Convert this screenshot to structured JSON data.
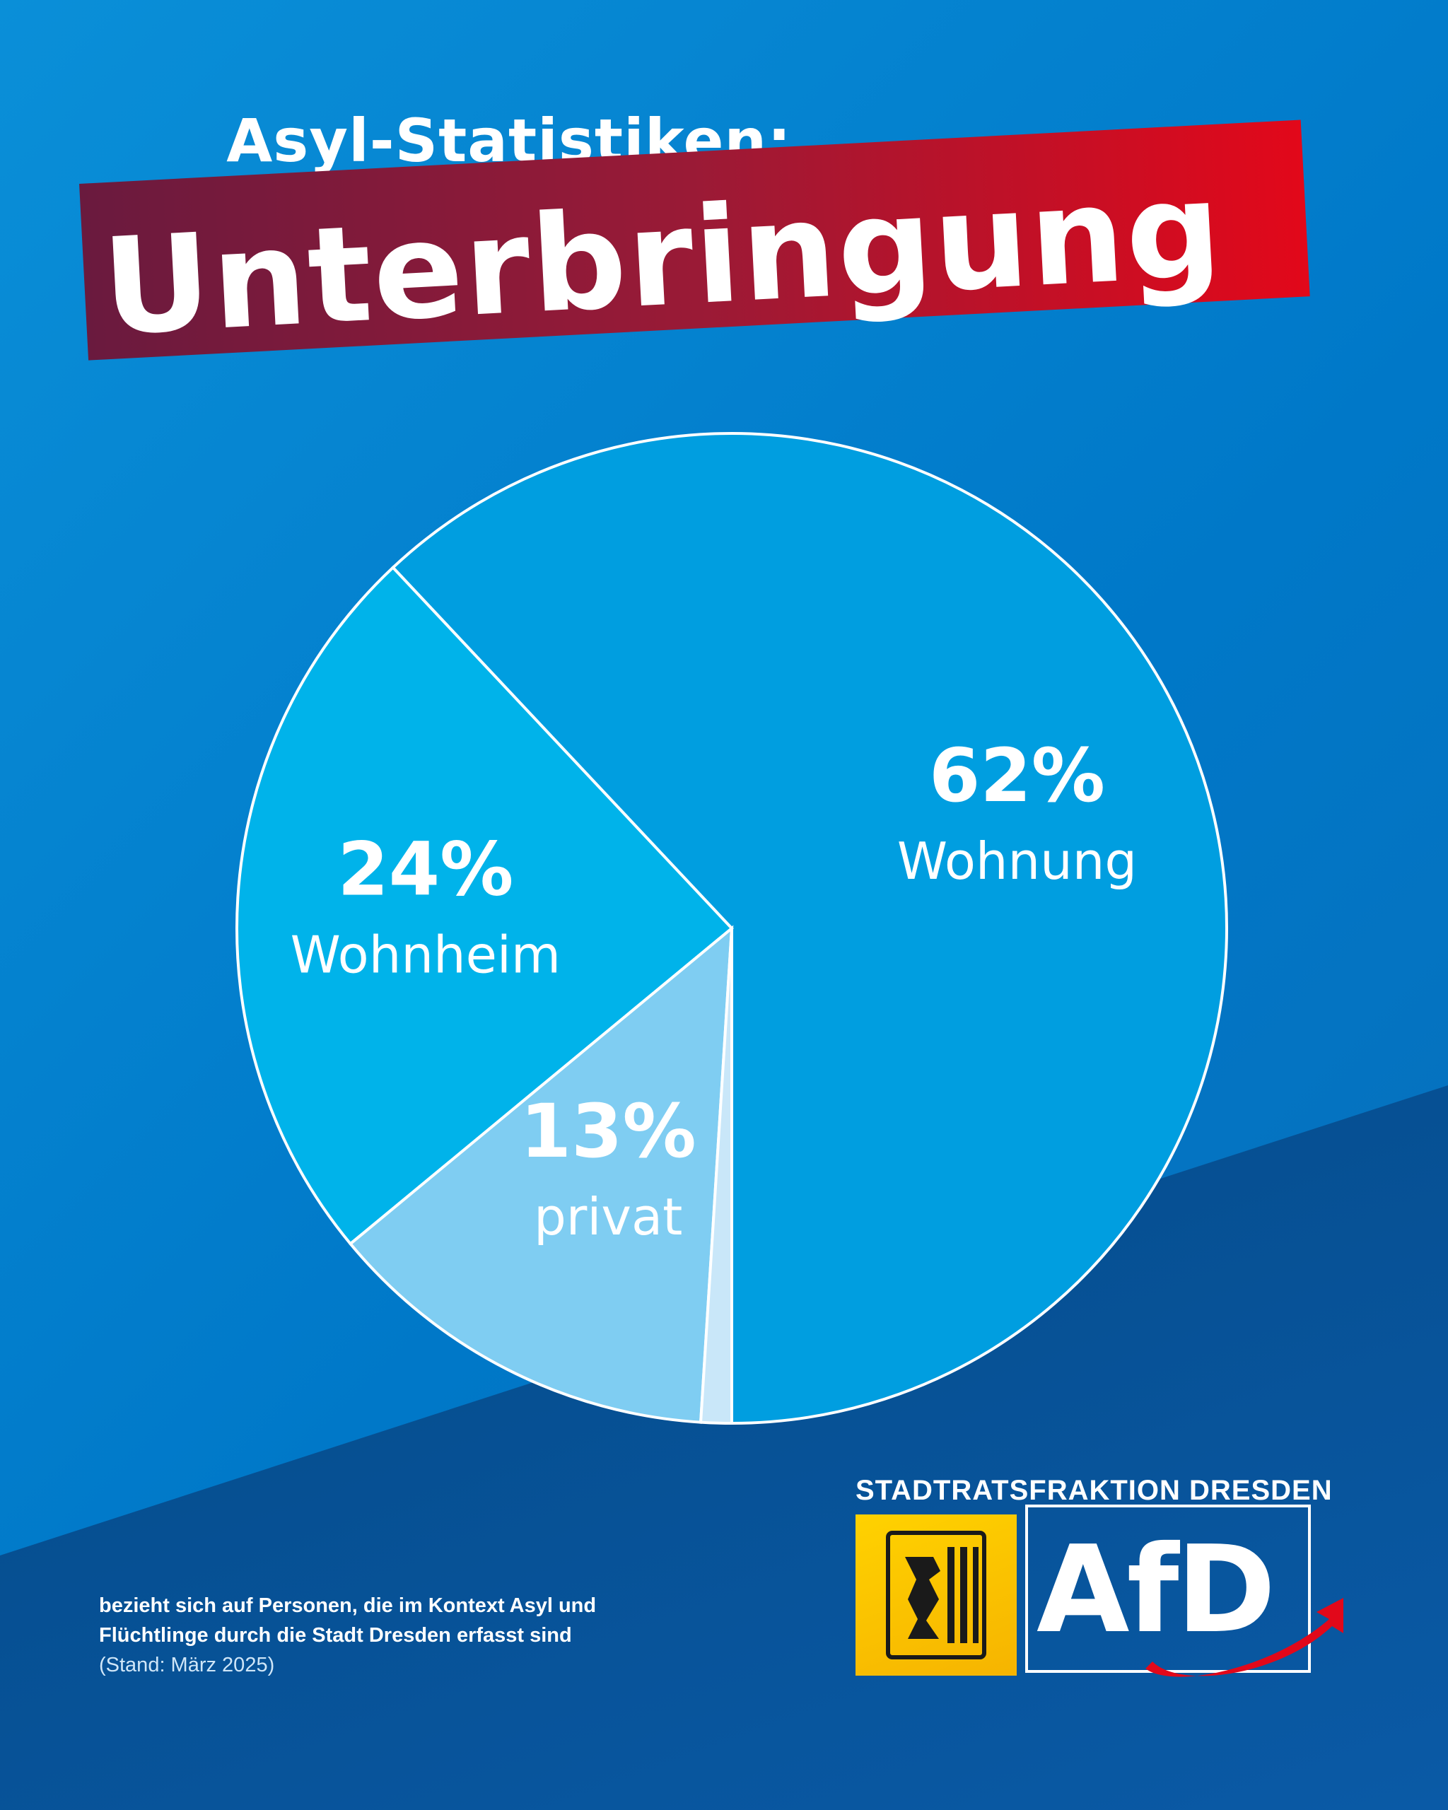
{
  "header": {
    "headline": "Asyl-Statistiken:",
    "banner": "Unterbringung"
  },
  "chart_data": {
    "type": "pie",
    "title": "Unterbringung",
    "slices": [
      {
        "label": "Wohnung",
        "value": 62,
        "value_label": "62%",
        "color": "#009ee0"
      },
      {
        "label": "Wohnheim",
        "value": 24,
        "value_label": "24%",
        "color": "#00b3ea"
      },
      {
        "label": "privat",
        "value": 13,
        "value_label": "13%",
        "color": "#7fcdf2"
      },
      {
        "label": "",
        "value": 1,
        "value_label": "",
        "color": "#c9e7f9"
      }
    ],
    "start_angle_deg": 180,
    "direction": "counter-clockwise",
    "legend": "none"
  },
  "footnote": {
    "line1": "bezieht sich auf Personen, die im Kontext Asyl und",
    "line2": "Flüchtlinge durch die Stadt Dresden erfasst sind",
    "stand": "(Stand: März 2025)"
  },
  "logo": {
    "top_text": "STADTRATSFRAKTION DRESDEN",
    "afd_text": "AfD",
    "crest_icon": "dresden-lion-crest-icon",
    "swoosh_icon": "red-arrow-swoosh-icon",
    "brand_red": "#e2081a",
    "brand_yellow": "#ffd200"
  }
}
